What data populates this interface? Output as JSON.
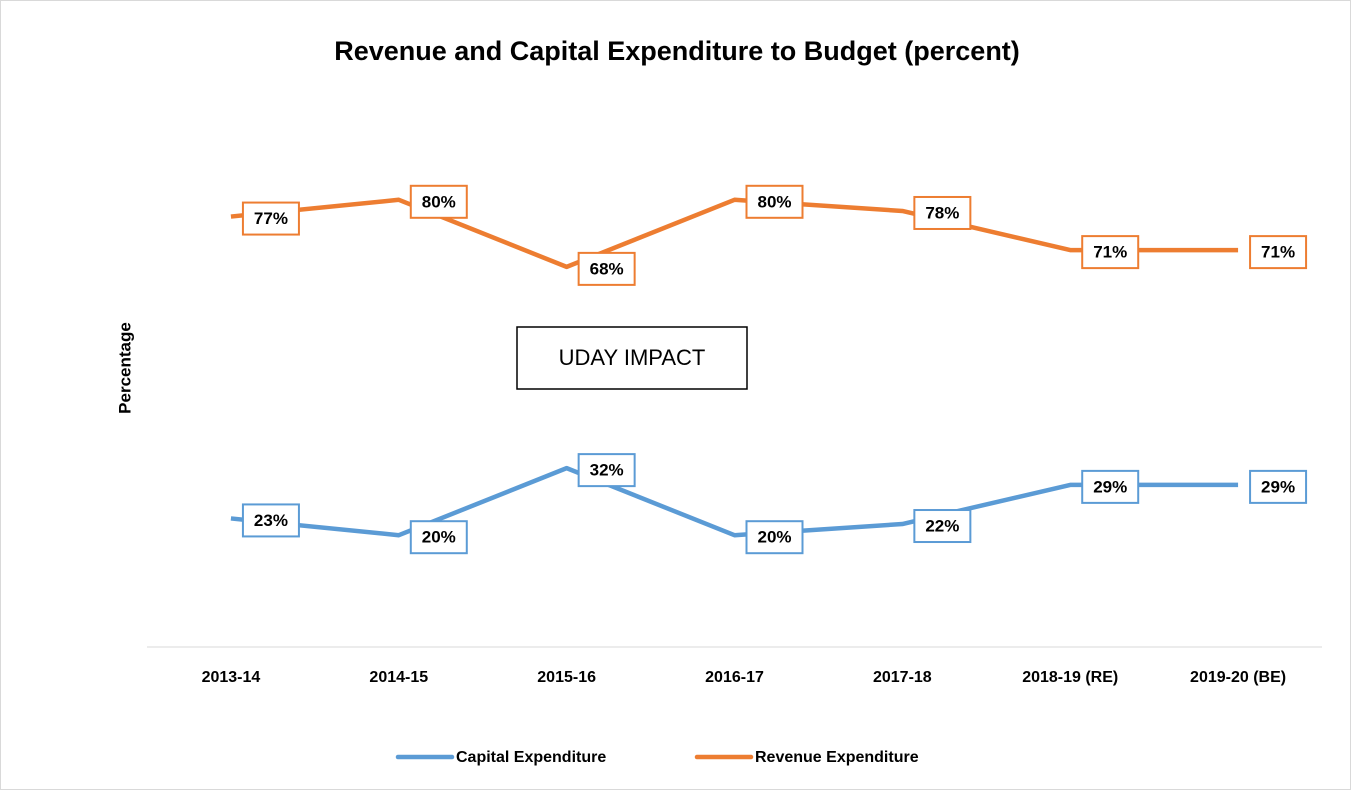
{
  "chart_data": {
    "type": "line",
    "title": "Revenue and Capital Expenditure to Budget (percent)",
    "y_label": "Percentage",
    "annotation": "UDAY IMPACT",
    "categories": [
      "2013-14",
      "2014-15",
      "2015-16",
      "2016-17",
      "2017-18",
      "2018-19 (RE)",
      "2019-20 (BE)"
    ],
    "series": [
      {
        "name": "Capital Expenditure",
        "color": "#5b9bd5",
        "values": [
          23,
          20,
          32,
          20,
          22,
          29,
          29
        ],
        "value_labels": [
          "23%",
          "20%",
          "32%",
          "20%",
          "22%",
          "29%",
          "29%"
        ]
      },
      {
        "name": "Revenue Expenditure",
        "color": "#ed7d31",
        "values": [
          77,
          80,
          68,
          80,
          78,
          71,
          71
        ],
        "value_labels": [
          "77%",
          "80%",
          "68%",
          "80%",
          "78%",
          "71%",
          "71%"
        ]
      }
    ],
    "ylim": [
      0,
      100
    ],
    "legend": "bottom"
  }
}
